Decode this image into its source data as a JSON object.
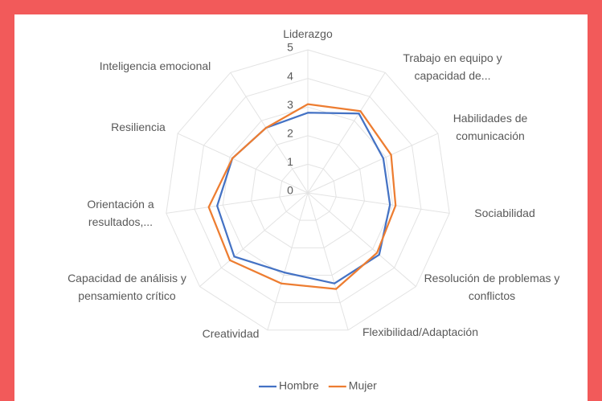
{
  "chart_data": {
    "type": "radar",
    "categories": [
      "Liderazgo",
      "Trabajo en equipo y capacidad de...",
      "Habilidades de comunicación",
      "Sociabilidad",
      "Resolución de problemas y conflictos",
      "Flexibilidad/Adaptación",
      "Creatividad",
      "Capacidad de análisis y pensamiento crítico",
      "Orientación a resultados,...",
      "Resiliencia",
      "Inteligencia emocional"
    ],
    "series": [
      {
        "name": "Hombre",
        "color": "#4472c4",
        "values": [
          2.8,
          3.3,
          2.9,
          2.9,
          3.3,
          3.3,
          2.9,
          3.4,
          3.2,
          2.9,
          2.7
        ]
      },
      {
        "name": "Mujer",
        "color": "#ed7d31",
        "values": [
          3.1,
          3.4,
          3.2,
          3.1,
          3.2,
          3.5,
          3.3,
          3.6,
          3.5,
          2.9,
          2.7
        ]
      }
    ],
    "ylim": [
      0,
      5
    ],
    "yticks": [
      0,
      1,
      2,
      3,
      4,
      5
    ],
    "grid": true,
    "legend": "bottom"
  }
}
